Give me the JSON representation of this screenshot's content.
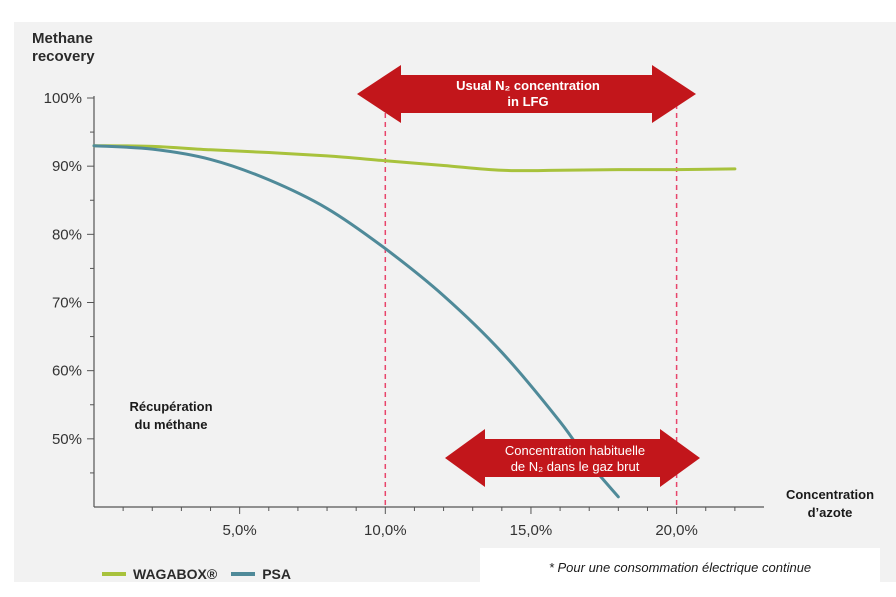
{
  "chart_data": {
    "type": "line",
    "ylabel_lines": [
      "Methane",
      "recovery"
    ],
    "xlabel_lines": [
      "Concentration",
      "d’azote"
    ],
    "x_ticks": [
      5,
      10,
      15,
      20
    ],
    "x_tick_labels": [
      "5,0%",
      "10,0%",
      "15,0%",
      "20,0%"
    ],
    "y_ticks": [
      50,
      60,
      70,
      80,
      90,
      100
    ],
    "y_tick_labels": [
      "50%",
      "60%",
      "70%",
      "80%",
      "90%",
      "100%"
    ],
    "xlim": [
      0,
      23
    ],
    "ylim": [
      40,
      100
    ],
    "series": [
      {
        "name": "WAGABOX®",
        "color": "#a8c23c",
        "x": [
          0,
          2,
          4,
          6,
          8,
          10,
          12,
          14,
          16,
          18,
          20,
          22
        ],
        "y": [
          93.0,
          92.9,
          92.4,
          92.0,
          91.5,
          90.8,
          90.1,
          89.4,
          89.4,
          89.5,
          89.5,
          89.6
        ]
      },
      {
        "name": "PSA",
        "color": "#4f8a99",
        "x": [
          0,
          2,
          4,
          6,
          8,
          10,
          12,
          14,
          16,
          17,
          18
        ],
        "y": [
          93.0,
          92.5,
          91.0,
          88.0,
          83.8,
          77.9,
          71.0,
          62.7,
          52.5,
          46.5,
          41.5
        ]
      }
    ],
    "range_markers": [
      10,
      20
    ],
    "range_marker_color": "#e8456b",
    "annotations": {
      "top_arrow": {
        "line1": "Usual N₂ concentration",
        "line2": "in LFG",
        "color": "#c2161b"
      },
      "bottom_arrow": {
        "line1": "Concentration habituelle",
        "line2": "de N₂ dans le gaz brut",
        "color": "#c2161b"
      }
    },
    "legend_position": "bottom-left",
    "grid": false
  },
  "labels": {
    "fr_left_line1": "Récupération",
    "fr_left_line2": "du méthane",
    "footnote": "* Pour une consommation électrique continue"
  }
}
